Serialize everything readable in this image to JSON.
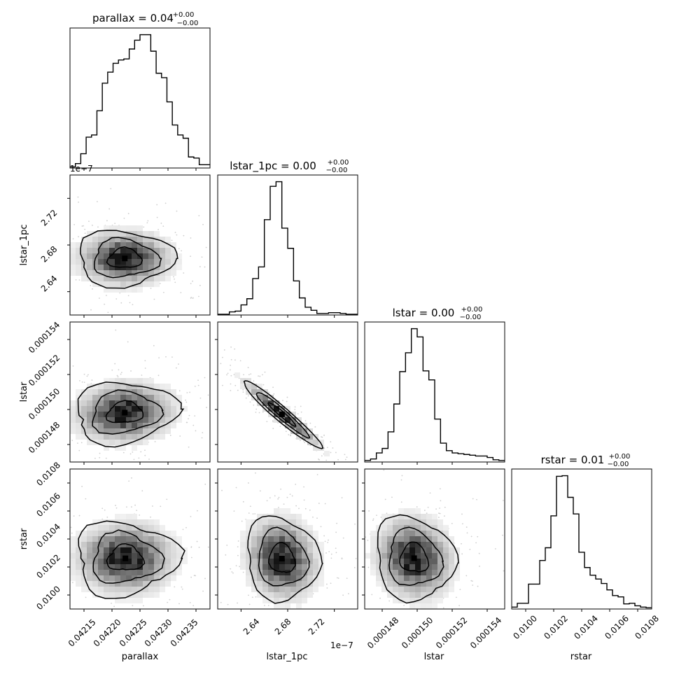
{
  "figure": {
    "type": "corner-plot",
    "parameters": [
      "parallax",
      "lstar_1pc",
      "lstar",
      "rstar"
    ]
  },
  "chart_data": [
    {
      "type": "histogram",
      "panel": "parallax-marginal",
      "title": {
        "main": "parallax = 0.04",
        "sup": "+0.00",
        "sub": "−0.00"
      },
      "xlabel": "",
      "ylabel": "",
      "xlim": [
        0.042135,
        0.042365
      ],
      "bins": [
        0.04214,
        0.042148,
        0.042156,
        0.042164,
        0.042172,
        0.04218,
        0.042188,
        0.042196,
        0.042204,
        0.042212,
        0.04222,
        0.042228,
        0.042236,
        0.042244,
        0.042252,
        0.04226,
        0.042268,
        0.042276,
        0.042284,
        0.042292,
        0.0423,
        0.042308,
        0.042316,
        0.042324,
        0.042332,
        0.04234
      ],
      "counts": [
        1,
        4,
        13,
        28,
        30,
        52,
        77,
        87,
        95,
        98,
        99,
        108,
        116,
        121,
        121,
        106,
        86,
        82,
        60,
        39,
        30,
        27,
        10,
        9,
        3,
        3
      ],
      "grid": false
    },
    {
      "type": "scatter-contour",
      "panel": "lstar_1pc-vs-parallax",
      "xlim": [
        0.042135,
        0.042365
      ],
      "ylim": [
        2.609e-07,
        2.755e-07
      ],
      "y_offset_label": "1e−7",
      "ylabel": "lstar_1pc",
      "yticks": [
        "2.64",
        "2.68",
        "2.72"
      ],
      "mode": [
        0.042225,
        2.668e-07
      ],
      "contour_levels": 3
    },
    {
      "type": "histogram",
      "panel": "lstar_1pc-marginal",
      "title": {
        "main": "lstar_1pc = 0.00",
        "sup": "+0.00",
        "sub": "−0.00"
      },
      "xlim": [
        2.609e-07,
        2.755e-07
      ],
      "bins": [
        2.6125e-07,
        2.6185e-07,
        2.6245e-07,
        2.6305e-07,
        2.6365e-07,
        2.6425e-07,
        2.6485e-07,
        2.6545e-07,
        2.6605e-07,
        2.6665e-07,
        2.6725e-07,
        2.6785e-07,
        2.6845e-07,
        2.6905e-07,
        2.6965e-07,
        2.7025e-07,
        2.7085e-07,
        2.7145e-07,
        2.7205e-07,
        2.7265e-07,
        2.7325e-07,
        2.7385e-07,
        2.7445e-07,
        2.7505e-07
      ],
      "counts": [
        1,
        1,
        4,
        5,
        13,
        21,
        47,
        62,
        123,
        166,
        172,
        112,
        86,
        44,
        22,
        10,
        6,
        2,
        2,
        3,
        3,
        2,
        1,
        1
      ],
      "grid": false
    },
    {
      "type": "scatter-contour",
      "panel": "lstar-vs-parallax",
      "xlim": [
        0.042135,
        0.042365
      ],
      "ylim": [
        0.0001465,
        0.000155
      ],
      "ylabel": "lstar",
      "yticks": [
        "0.000148",
        "0.000150",
        "0.000152",
        "0.000154"
      ],
      "mode": [
        0.042225,
        0.0001495
      ],
      "contour_levels": 3
    },
    {
      "type": "scatter-contour",
      "panel": "lstar-vs-lstar_1pc",
      "xlim": [
        2.609e-07,
        2.755e-07
      ],
      "ylim": [
        0.0001465,
        0.000155
      ],
      "mode": [
        2.676e-07,
        0.0001494
      ],
      "contour_levels": 3
    },
    {
      "type": "histogram",
      "panel": "lstar-marginal",
      "title": {
        "main": "lstar = 0.00",
        "sup": "+0.00",
        "sub": "−0.00"
      },
      "xlim": [
        0.0001465,
        0.000155
      ],
      "bins": [
        0.0001467,
        0.00014705,
        0.0001474,
        0.00014775,
        0.0001481,
        0.00014845,
        0.0001488,
        0.00014915,
        0.0001495,
        0.00014985,
        0.0001502,
        0.00015055,
        0.0001509,
        0.00015125,
        0.0001516,
        0.00015195,
        0.0001523,
        0.00015265,
        0.000153,
        0.00015335,
        0.0001537,
        0.00015405,
        0.0001544,
        0.00015475
      ],
      "counts": [
        2,
        4,
        12,
        18,
        40,
        77,
        120,
        145,
        177,
        166,
        121,
        109,
        57,
        25,
        15,
        12,
        11,
        10,
        9,
        8,
        8,
        6,
        3,
        2
      ],
      "grid": false
    },
    {
      "type": "scatter-contour",
      "panel": "rstar-vs-parallax",
      "xlim": [
        0.042135,
        0.042365
      ],
      "ylim": [
        0.00991,
        0.01091
      ],
      "xlabel": "parallax",
      "ylabel": "rstar",
      "xticks": [
        "0.04215",
        "0.04220",
        "0.04225",
        "0.04230",
        "0.04235"
      ],
      "yticks": [
        "0.0100",
        "0.0102",
        "0.0104",
        "0.0106",
        "0.0108"
      ],
      "mode": [
        0.042226,
        0.010272
      ],
      "contour_levels": 3
    },
    {
      "type": "scatter-contour",
      "panel": "rstar-vs-lstar_1pc",
      "xlim": [
        2.609e-07,
        2.755e-07
      ],
      "ylim": [
        0.00991,
        0.01091
      ],
      "xlabel": "lstar_1pc",
      "x_offset_label": "1e−7",
      "xticks": [
        "2.64",
        "2.68",
        "2.72"
      ],
      "mode": [
        2.676e-07,
        0.01027
      ],
      "contour_levels": 3
    },
    {
      "type": "scatter-contour",
      "panel": "rstar-vs-lstar",
      "xlim": [
        0.0001465,
        0.000155
      ],
      "ylim": [
        0.00991,
        0.01091
      ],
      "xlabel": "lstar",
      "xticks": [
        "0.000148",
        "0.000150",
        "0.000152",
        "0.000154"
      ],
      "mode": [
        0.0001495,
        0.010273
      ],
      "contour_levels": 3
    },
    {
      "type": "histogram",
      "panel": "rstar-marginal",
      "title": {
        "main": "rstar = 0.01",
        "sup": "+0.00",
        "sub": "−0.00"
      },
      "xlabel": "rstar",
      "xlim": [
        0.00991,
        0.01091
      ],
      "xticks": [
        "0.0100",
        "0.0102",
        "0.0104",
        "0.0106",
        "0.0108"
      ],
      "bins": [
        0.009935,
        0.009975,
        0.010015,
        0.010055,
        0.010095,
        0.010135,
        0.010175,
        0.010215,
        0.010255,
        0.010295,
        0.010335,
        0.010375,
        0.010415,
        0.010455,
        0.010495,
        0.010535,
        0.010575,
        0.010615,
        0.010655,
        0.010695,
        0.010735,
        0.010775,
        0.010815,
        0.010855,
        0.010895
      ],
      "counts": [
        3,
        9,
        9,
        39,
        39,
        76,
        96,
        146,
        208,
        209,
        175,
        149,
        89,
        65,
        53,
        47,
        40,
        30,
        21,
        19,
        8,
        9,
        5,
        3,
        2
      ],
      "grid": false
    }
  ]
}
